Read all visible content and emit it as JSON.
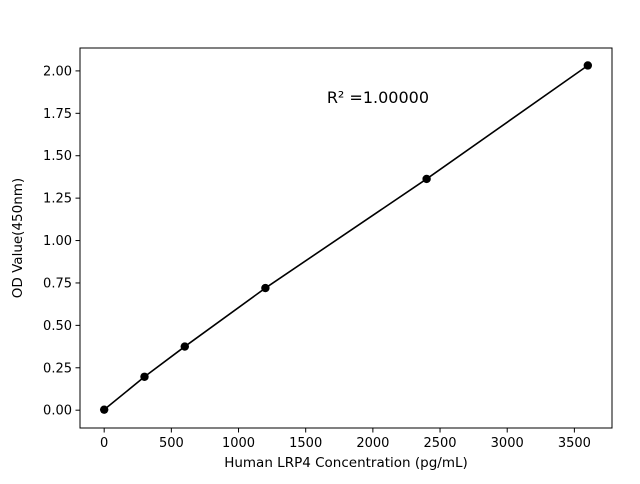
{
  "chart_data": {
    "type": "scatter",
    "title": "",
    "xlabel": "Human LRP4 Concentration (pg/mL)",
    "ylabel": "OD Value(450nm)",
    "x": [
      0,
      300,
      600,
      1200,
      2400,
      3600
    ],
    "y": [
      0.003,
      0.197,
      0.375,
      0.72,
      1.363,
      2.032
    ],
    "xlim": [
      -180,
      3780
    ],
    "ylim": [
      -0.105,
      2.135
    ],
    "x_ticks": [
      0,
      500,
      1000,
      1500,
      2000,
      2500,
      3000,
      3500
    ],
    "y_ticks": [
      0,
      0.25,
      0.5,
      0.75,
      1.0,
      1.25,
      1.5,
      1.75,
      2.0
    ],
    "annotation": "R² =1.00000",
    "annotation_xy": [
      0.56,
      0.145
    ],
    "line_color": "#000000",
    "marker_color": "#000000",
    "background": "#ffffff",
    "grid": false,
    "legend": "none"
  }
}
